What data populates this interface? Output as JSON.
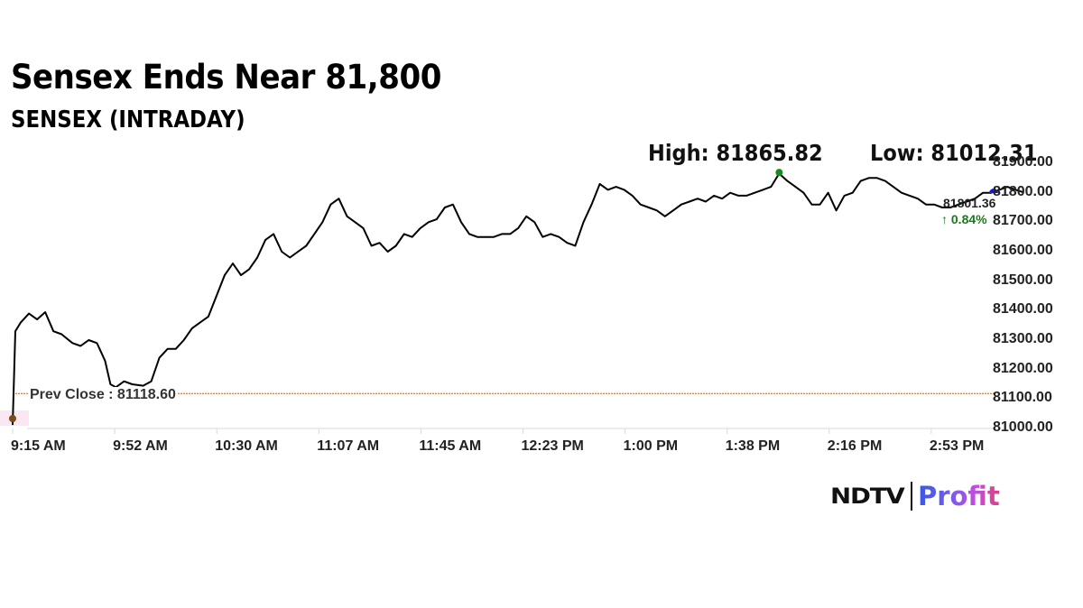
{
  "header": {
    "headline": "Sensex Ends Near 81,800",
    "subtitle": "SENSEX (INTRADAY)"
  },
  "stats": {
    "high_label": "High: 81865.82",
    "low_label": "Low: 81012.31",
    "last_price": "81801.36",
    "change": "↑ 0.84%",
    "prev_close_label": "Prev Close : 81118.60"
  },
  "colors": {
    "line": "#000000",
    "high_marker": "#1a8a1a",
    "low_marker": "#7a4a10",
    "last_marker": "#1a1acc",
    "prev_close_line": "#b5651d",
    "change_up": "#1a7a1a"
  },
  "logo": {
    "brand": "NDTV",
    "product": "Profit"
  },
  "chart_data": {
    "type": "line",
    "title": "Sensex Ends Near 81,800",
    "subtitle": "SENSEX (INTRADAY)",
    "xlabel": "",
    "ylabel": "",
    "x_tick_labels": [
      "9:15 AM",
      "9:52 AM",
      "10:30 AM",
      "11:07 AM",
      "11:45 AM",
      "12:23 PM",
      "1:00 PM",
      "1:38 PM",
      "2:16 PM",
      "2:53 PM"
    ],
    "y_tick_labels": [
      "81900.00",
      "81800.00",
      "81700.00",
      "81600.00",
      "81500.00",
      "81400.00",
      "81300.00",
      "81200.00",
      "81100.00",
      "81000.00"
    ],
    "ylim": [
      81000,
      81900
    ],
    "grid": false,
    "legend": null,
    "annotations": {
      "high": 81865.82,
      "low": 81012.31,
      "prev_close": 81118.6,
      "last": 81801.36,
      "change_pct": 0.84
    },
    "series": [
      {
        "name": "SENSEX",
        "x_minutes_from_open": [
          0,
          1,
          3,
          6,
          9,
          12,
          15,
          18,
          22,
          25,
          28,
          31,
          34,
          36,
          38,
          41,
          44,
          48,
          51,
          54,
          57,
          60,
          63,
          66,
          69,
          72,
          75,
          78,
          81,
          84,
          87,
          90,
          93,
          96,
          99,
          102,
          105,
          108,
          111,
          114,
          117,
          120,
          123,
          126,
          129,
          132,
          135,
          138,
          141,
          144,
          147,
          150,
          153,
          156,
          159,
          162,
          165,
          168,
          171,
          174,
          177,
          180,
          183,
          186,
          189,
          192,
          195,
          198,
          201,
          204,
          207,
          210,
          213,
          216,
          219,
          222,
          225,
          228,
          231,
          234,
          237,
          240,
          243,
          246,
          249,
          252,
          255,
          258,
          261,
          264,
          267,
          270,
          273,
          276,
          279,
          282,
          285,
          288,
          291,
          294,
          297,
          300,
          303,
          306,
          309,
          312,
          315,
          318,
          321,
          324,
          327,
          330,
          333,
          336,
          339,
          342,
          345,
          348,
          351,
          354,
          357,
          360,
          363,
          366,
          369,
          372
        ],
        "values": [
          81012,
          81330,
          81360,
          81390,
          81370,
          81395,
          81330,
          81320,
          81290,
          81280,
          81300,
          81290,
          81230,
          81150,
          81140,
          81160,
          81150,
          81145,
          81160,
          81240,
          81270,
          81270,
          81300,
          81340,
          81360,
          81380,
          81450,
          81520,
          81560,
          81520,
          81540,
          81580,
          81640,
          81660,
          81600,
          81580,
          81600,
          81620,
          81660,
          81700,
          81760,
          81780,
          81720,
          81700,
          81680,
          81620,
          81630,
          81600,
          81620,
          81660,
          81650,
          81680,
          81700,
          81710,
          81750,
          81760,
          81700,
          81660,
          81650,
          81650,
          81650,
          81660,
          81660,
          81680,
          81720,
          81700,
          81650,
          81660,
          81650,
          81630,
          81620,
          81700,
          81760,
          81830,
          81810,
          81820,
          81810,
          81790,
          81760,
          81750,
          81740,
          81720,
          81740,
          81760,
          81770,
          81780,
          81770,
          81790,
          81780,
          81800,
          81790,
          81790,
          81800,
          81810,
          81820,
          81865,
          81840,
          81820,
          81800,
          81760,
          81760,
          81800,
          81740,
          81790,
          81800,
          81840,
          81850,
          81850,
          81840,
          81820,
          81800,
          81790,
          81780,
          81760,
          81760,
          81750,
          81750,
          81760,
          81770,
          81780,
          81800,
          81800,
          81810,
          81820,
          81810,
          81801
        ]
      }
    ]
  }
}
